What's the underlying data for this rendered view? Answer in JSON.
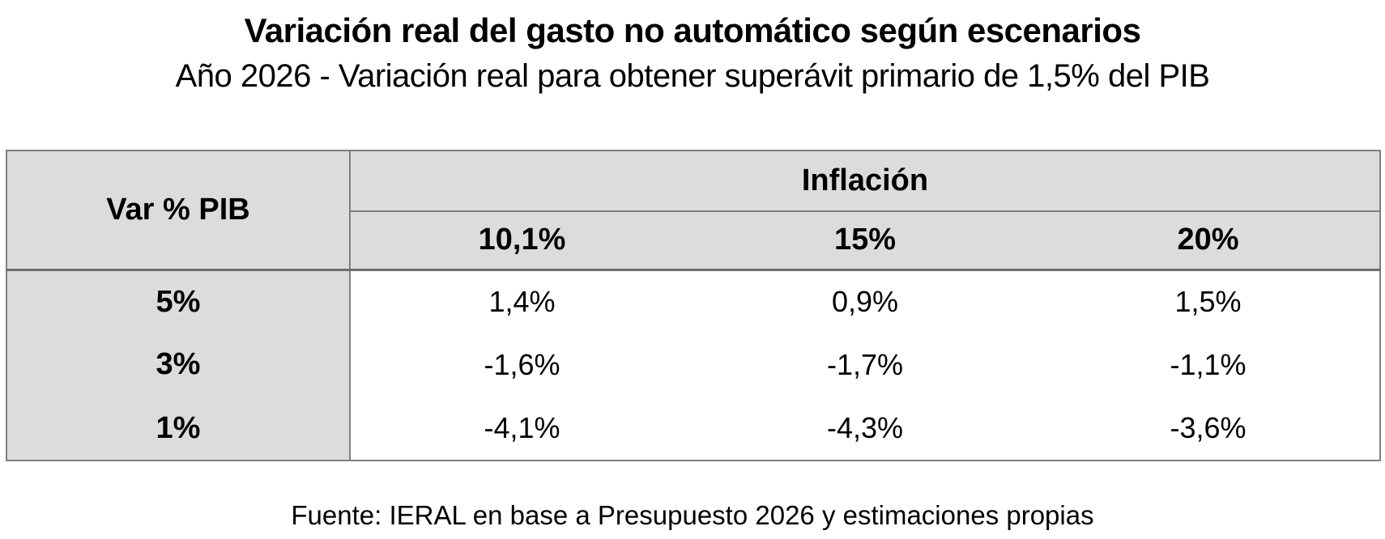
{
  "title": "Variación real del gasto no automático según escenarios",
  "subtitle": "Año 2026 - Variación real para obtener superávit primario de 1,5% del PIB",
  "source": "Fuente: IERAL en base a Presupuesto 2026 y estimaciones propias",
  "table": {
    "row_header_label": "Var % PIB",
    "col_group_label": "Inflación",
    "col_headers": [
      "10,1%",
      "15%",
      "20%"
    ],
    "rows": [
      {
        "label": "5%",
        "values": [
          "1,4%",
          "0,9%",
          "1,5%"
        ]
      },
      {
        "label": "3%",
        "values": [
          "-1,6%",
          "-1,7%",
          "-1,1%"
        ]
      },
      {
        "label": "1%",
        "values": [
          "-4,1%",
          "-4,3%",
          "-3,6%"
        ]
      }
    ]
  },
  "colors": {
    "header_fill": "#dcdcdc",
    "border": "#7f7f7f",
    "separator": "#6d6d6d",
    "text": "#000000",
    "background": "#ffffff"
  },
  "chart_data": {
    "type": "table",
    "title": "Variación real del gasto no automático según escenarios",
    "subtitle": "Año 2026 - Variación real para obtener superávit primario de 1,5% del PIB",
    "row_dimension": "Var % PIB",
    "col_dimension": "Inflación",
    "columns_inflacion_pct": [
      10.1,
      15,
      20
    ],
    "rows_var_pib_pct": [
      5,
      3,
      1
    ],
    "values_pct": [
      [
        1.4,
        0.9,
        1.5
      ],
      [
        -1.6,
        -1.7,
        -1.1
      ],
      [
        -4.1,
        -4.3,
        -3.6
      ]
    ],
    "source": "Fuente: IERAL en base a Presupuesto 2026 y estimaciones propias"
  }
}
